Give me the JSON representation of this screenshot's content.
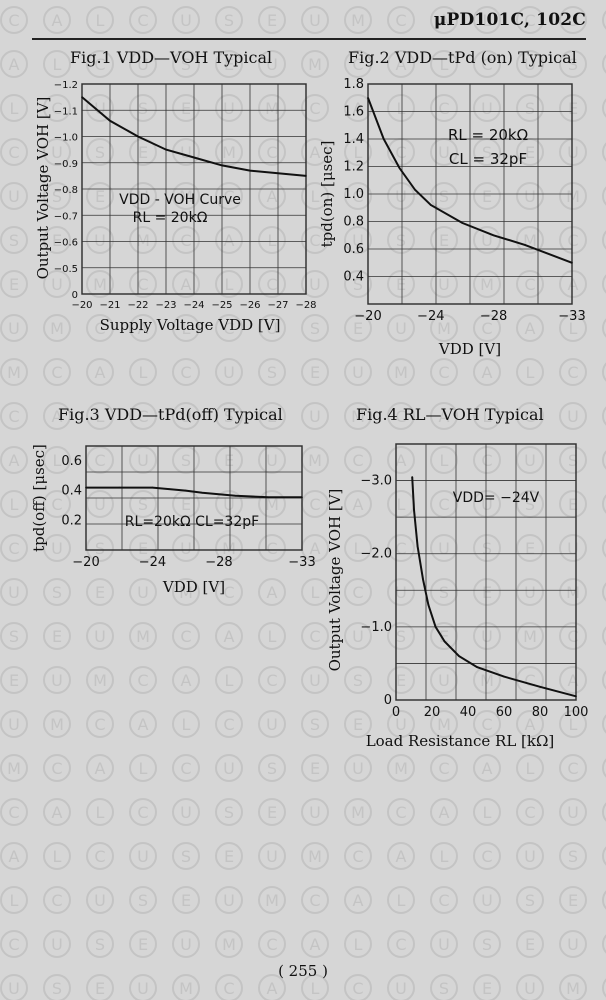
{
  "header": {
    "title": "μPD101C, 102C"
  },
  "page_number": "( 255 )",
  "watermark": {
    "letters": [
      "C",
      "A",
      "L",
      "C",
      "U",
      "S",
      "E",
      "U",
      "M"
    ],
    "color": "#c4c4c4"
  },
  "chart_data": [
    {
      "id": "fig1",
      "type": "line",
      "fig_label": "Fig.1",
      "title": "VDD—VOH Typical",
      "xlabel": "Supply Voltage VDD [V]",
      "ylabel": "Output Voltage VOH [V]",
      "annotation": [
        "VDD - VOH Curve",
        "RL = 20kΩ"
      ],
      "xlim": [
        -20,
        -28
      ],
      "ylim": [
        0,
        -1.2
      ],
      "xticks": [
        "−20",
        "−21",
        "−22",
        "−23",
        "−24",
        "−25",
        "−26",
        "−27",
        "−28"
      ],
      "yticks": [
        "0",
        "−0.5",
        "−0.6",
        "−0.7",
        "−0.8",
        "−0.9",
        "−1.0",
        "−1.1",
        "−1.2"
      ],
      "series": [
        {
          "x": [
            -20,
            -21,
            -22,
            -23,
            -24,
            -25,
            -26,
            -27,
            -28
          ],
          "y": [
            -1.15,
            -1.06,
            -1.0,
            -0.95,
            -0.92,
            -0.89,
            -0.87,
            -0.86,
            -0.85
          ]
        }
      ]
    },
    {
      "id": "fig2",
      "type": "line",
      "fig_label": "Fig.2",
      "title": "VDD—tPd (on) Typical",
      "xlabel": "VDD [V]",
      "ylabel": "tpd(on) [μsec]",
      "annotation": [
        "RL = 20kΩ",
        "CL = 32pF"
      ],
      "xlim": [
        -20,
        -33
      ],
      "ylim": [
        0.2,
        1.8
      ],
      "xticks": [
        "−20",
        "−24",
        "−28",
        "−33"
      ],
      "yticks": [
        "0.4",
        "0.6",
        "0.8",
        "1.0",
        "1.2",
        "1.4",
        "1.6",
        "1.8"
      ],
      "series": [
        {
          "x": [
            -20,
            -21,
            -22,
            -23,
            -24,
            -26,
            -28,
            -30,
            -33
          ],
          "y": [
            1.7,
            1.4,
            1.19,
            1.03,
            0.92,
            0.79,
            0.7,
            0.63,
            0.5
          ]
        }
      ]
    },
    {
      "id": "fig3",
      "type": "line",
      "fig_label": "Fig.3",
      "title": "VDD—tPd(off) Typical",
      "xlabel": "VDD [V]",
      "ylabel": "tpd(off) [μsec]",
      "annotation": [
        "RL=20kΩ  CL=32pF"
      ],
      "xlim": [
        -20,
        -33
      ],
      "ylim": [
        0,
        0.7
      ],
      "xticks": [
        "−20",
        "−24",
        "−28",
        "−33"
      ],
      "yticks": [
        "0.2",
        "0.4",
        "0.6"
      ],
      "series": [
        {
          "x": [
            -20,
            -22,
            -24,
            -25,
            -26,
            -27,
            -28,
            -29,
            -30,
            -31,
            -33
          ],
          "y": [
            0.42,
            0.42,
            0.42,
            0.41,
            0.4,
            0.385,
            0.375,
            0.365,
            0.36,
            0.355,
            0.355
          ]
        }
      ]
    },
    {
      "id": "fig4",
      "type": "line",
      "fig_label": "Fig.4",
      "title": "RL—VOH Typical",
      "xlabel": "Load Resistance RL [kΩ]",
      "ylabel": "Output Voltage VOH [V]",
      "annotation": [
        "VDD= −24V"
      ],
      "xlim": [
        0,
        100
      ],
      "ylim": [
        0,
        -3.5
      ],
      "xticks": [
        "0",
        "20",
        "40",
        "60",
        "80",
        "100"
      ],
      "yticks": [
        "0",
        "−1.0",
        "−2.0",
        "−3.0"
      ],
      "series": [
        {
          "x": [
            9,
            10,
            12,
            15,
            18,
            22,
            27,
            35,
            45,
            60,
            80,
            100
          ],
          "y": [
            -3.05,
            -2.6,
            -2.1,
            -1.65,
            -1.3,
            -1.0,
            -0.8,
            -0.6,
            -0.45,
            -0.32,
            -0.18,
            -0.05
          ]
        }
      ]
    }
  ]
}
